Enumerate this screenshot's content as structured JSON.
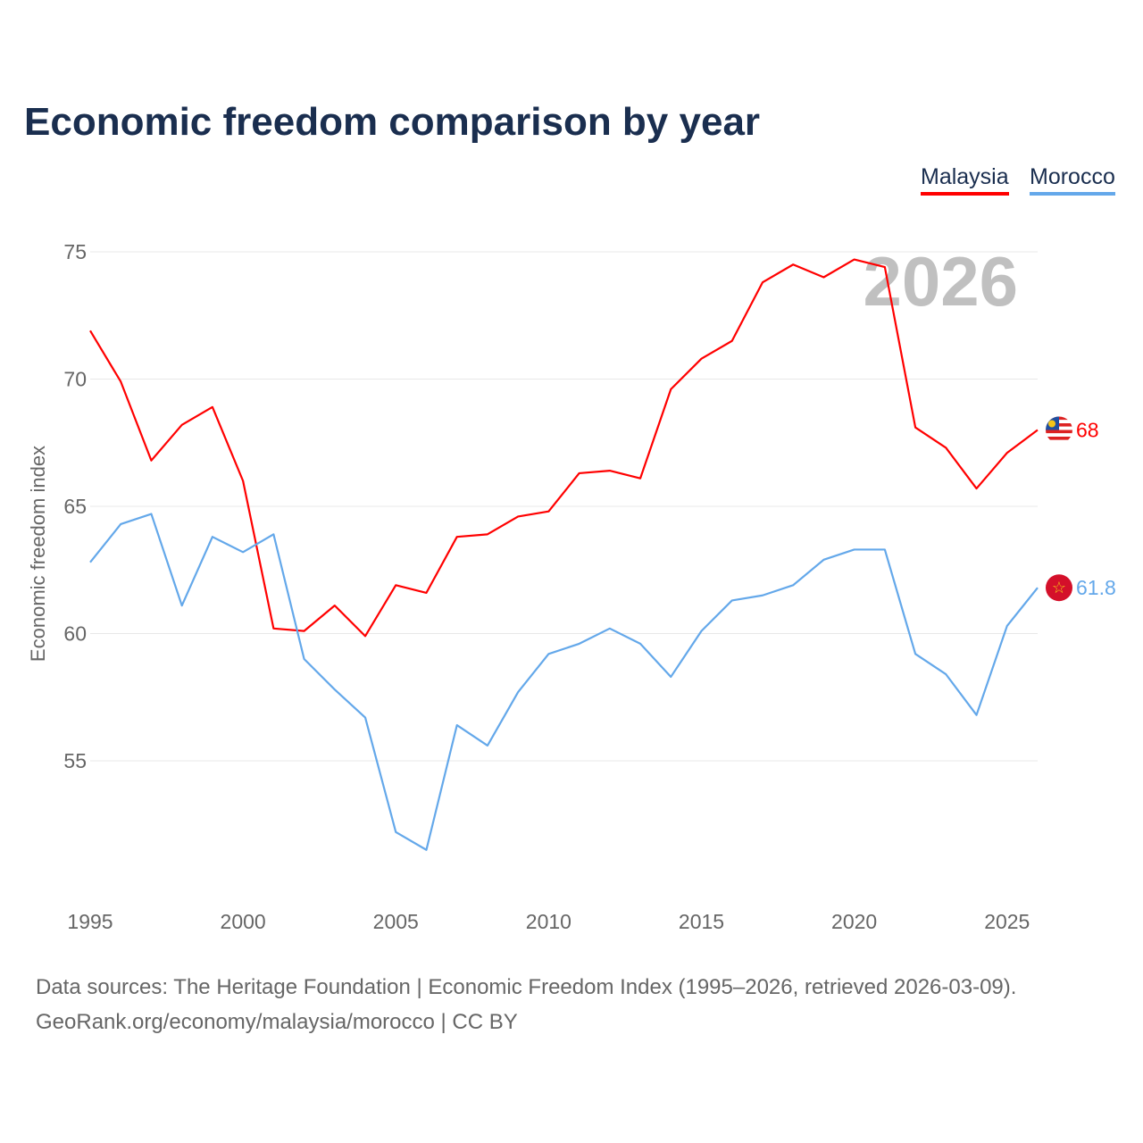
{
  "title": "Economic freedom comparison by year",
  "footer": {
    "line1": "Data sources: The Heritage Foundation | Economic Freedom Index (1995–2026, retrieved 2026-03-09).",
    "line2": "GeoRank.org/economy/malaysia/morocco | CC BY"
  },
  "chart_data": {
    "type": "line",
    "title": "Economic freedom comparison by year",
    "ylabel": "Economic freedom index",
    "xlabel": "",
    "year_watermark": "2026",
    "ylim": [
      50,
      76.5
    ],
    "xlim": [
      1995,
      2026
    ],
    "yticks": [
      55,
      60,
      65,
      70,
      75
    ],
    "xticks": [
      1995,
      2000,
      2005,
      2010,
      2015,
      2020,
      2025
    ],
    "grid": true,
    "legend": "top-right",
    "x": [
      1995,
      1996,
      1997,
      1998,
      1999,
      2000,
      2001,
      2002,
      2003,
      2004,
      2005,
      2006,
      2007,
      2008,
      2009,
      2010,
      2011,
      2012,
      2013,
      2014,
      2015,
      2016,
      2017,
      2018,
      2019,
      2020,
      2021,
      2022,
      2023,
      2024,
      2025,
      2026
    ],
    "series": [
      {
        "name": "Malaysia",
        "color": "#ff0000",
        "end_label": "68",
        "flag": "malaysia-flag",
        "values": [
          71.9,
          69.9,
          66.8,
          68.2,
          68.9,
          66.0,
          60.2,
          60.1,
          61.1,
          59.9,
          61.9,
          61.6,
          63.8,
          63.9,
          64.6,
          64.8,
          66.3,
          66.4,
          66.1,
          69.6,
          70.8,
          71.5,
          73.8,
          74.5,
          74.0,
          74.7,
          74.4,
          68.1,
          67.3,
          65.7,
          67.1,
          68.0
        ]
      },
      {
        "name": "Morocco",
        "color": "#64a8ea",
        "end_label": "61.8",
        "flag": "morocco-flag",
        "values": [
          62.8,
          64.3,
          64.7,
          61.1,
          63.8,
          63.2,
          63.9,
          59.0,
          57.8,
          56.7,
          52.2,
          51.5,
          56.4,
          55.6,
          57.7,
          59.2,
          59.6,
          60.2,
          59.6,
          58.3,
          60.1,
          61.3,
          61.5,
          61.9,
          62.9,
          63.3,
          63.3,
          59.2,
          58.4,
          56.8,
          60.3,
          61.8
        ]
      }
    ]
  }
}
